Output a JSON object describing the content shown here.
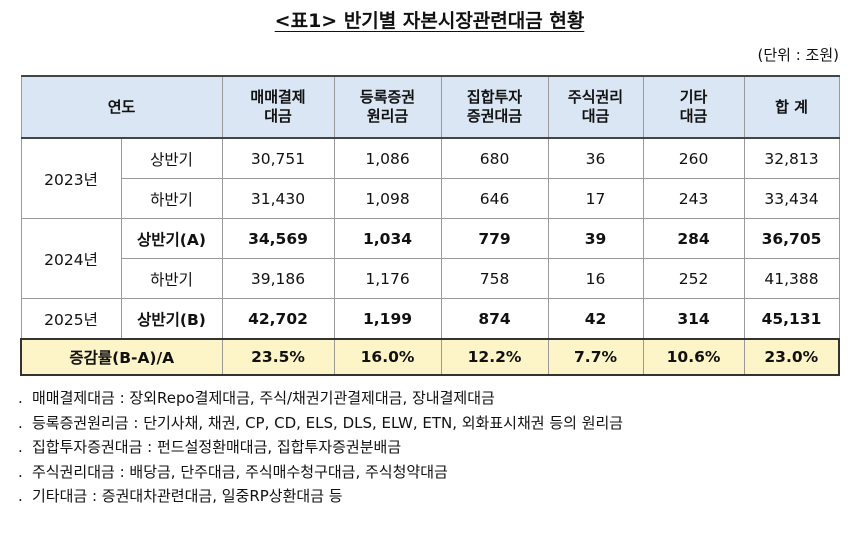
{
  "title": "<표1> 반기별 자본시장관련대금 현황",
  "unit": "(단위 : 조원)",
  "table": {
    "headers": {
      "year": "연도",
      "c1": "매매결제\n대금",
      "c2": "등록증권\n원리금",
      "c3": "집합투자\n증권대금",
      "c4": "주식권리\n대금",
      "c5": "기타\n대금",
      "c6": "합 계"
    },
    "rows": [
      {
        "year": "2023년",
        "half": "상반기",
        "values": [
          "30,751",
          "1,086",
          "680",
          "36",
          "260",
          "32,813"
        ]
      },
      {
        "half": "하반기",
        "values": [
          "31,430",
          "1,098",
          "646",
          "17",
          "243",
          "33,434"
        ]
      },
      {
        "year": "2024년",
        "half": "상반기(A)",
        "values": [
          "34,569",
          "1,034",
          "779",
          "39",
          "284",
          "36,705"
        ]
      },
      {
        "half": "하반기",
        "values": [
          "39,186",
          "1,176",
          "758",
          "16",
          "252",
          "41,388"
        ]
      },
      {
        "year": "2025년",
        "half": "상반기(B)",
        "values": [
          "42,702",
          "1,199",
          "874",
          "42",
          "314",
          "45,131"
        ]
      }
    ],
    "rate": {
      "label": "증감률(B-A)/A",
      "values": [
        "23.5%",
        "16.0%",
        "12.2%",
        "7.7%",
        "10.6%",
        "23.0%"
      ]
    },
    "header_bg": "#dae6f3",
    "rate_bg": "#fdf5c8"
  },
  "notes": [
    "매매결제대금 : 장외Repo결제대금, 주식/채권기관결제대금, 장내결제대금",
    "등록증권원리금 : 단기사채, 채권, CP, CD, ELS, DLS, ELW, ETN, 외화표시채권 등의 원리금",
    "집합투자증권대금 : 펀드설정환매대금, 집합투자증권분배금",
    "주식권리대금 : 배당금, 단주대금, 주식매수청구대금, 주식청약대금",
    "기타대금 : 증권대차관련대금, 일중RP상환대금 등"
  ],
  "note_bullet": "."
}
